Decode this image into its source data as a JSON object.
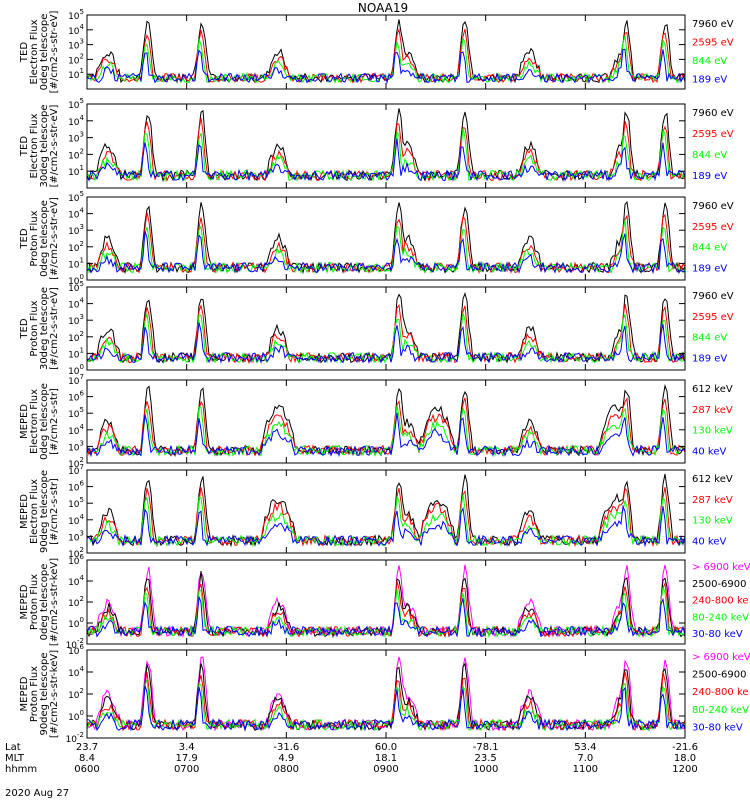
{
  "title": "NOAA19",
  "date": "2020 Aug 27",
  "colors": {
    "black": "#000000",
    "red": "#ff0000",
    "green": "#00ff00",
    "blue": "#0000ff",
    "magenta": "#ff00ff"
  },
  "axis_rows": [
    {
      "label": "Lat",
      "values": [
        "23.7",
        "3.4",
        "-31.6",
        "60.0",
        "-78.1",
        "53.4",
        "-21.6"
      ]
    },
    {
      "label": "MLT",
      "values": [
        "8.4",
        "17.9",
        "4.9",
        "18.1",
        "23.5",
        "7.0",
        "18.0"
      ]
    },
    {
      "label": "hhmm",
      "values": [
        "0600",
        "0700",
        "0800",
        "0900",
        "1000",
        "1100",
        "1200"
      ]
    }
  ],
  "chart_data": [
    {
      "type": "scatter",
      "ylabel": [
        "TED",
        "Electron Flux",
        "0deg telescope",
        "[#/cm2-s-str-eV]"
      ],
      "yticks": [
        {
          "v": 1,
          "t": "10"
        },
        {
          "v": 2,
          "t": "10"
        },
        {
          "v": 3,
          "t": "10"
        },
        {
          "v": 4,
          "t": "10"
        },
        {
          "v": 5,
          "t": "10"
        }
      ],
      "ytick_exp": [
        "1",
        "2",
        "3",
        "4",
        "5"
      ],
      "ylim_log10": [
        0,
        5
      ],
      "series": [
        {
          "name": "7960 eV",
          "color": "#000000"
        },
        {
          "name": "2595 eV",
          "color": "#ff0000"
        },
        {
          "name": "844 eV",
          "color": "#00ff00"
        },
        {
          "name": "189 eV",
          "color": "#0000ff"
        }
      ]
    },
    {
      "type": "scatter",
      "ylabel": [
        "TED",
        "Electron Flux",
        "30deg telescope",
        "[#/cm2-s-str-eV]"
      ],
      "yticks": [
        {
          "v": 1,
          "t": "10"
        },
        {
          "v": 2,
          "t": "10"
        },
        {
          "v": 3,
          "t": "10"
        },
        {
          "v": 4,
          "t": "10"
        },
        {
          "v": 5,
          "t": "10"
        }
      ],
      "ytick_exp": [
        "1",
        "2",
        "3",
        "4",
        "5"
      ],
      "ylim_log10": [
        0,
        5
      ],
      "series": [
        {
          "name": "7960 eV",
          "color": "#000000"
        },
        {
          "name": "2595 eV",
          "color": "#ff0000"
        },
        {
          "name": "844 eV",
          "color": "#00ff00"
        },
        {
          "name": "189 eV",
          "color": "#0000ff"
        }
      ]
    },
    {
      "type": "scatter",
      "ylabel": [
        "TED",
        "Proton Flux",
        "0deg telescope",
        "[#/cm2-s-str-eV]"
      ],
      "yticks": [
        {
          "v": 0,
          "t": "10"
        },
        {
          "v": 1,
          "t": "10"
        },
        {
          "v": 2,
          "t": "10"
        },
        {
          "v": 3,
          "t": "10"
        },
        {
          "v": 4,
          "t": "10"
        },
        {
          "v": 5,
          "t": "10"
        }
      ],
      "ytick_exp": [
        "0",
        "1",
        "2",
        "3",
        "4",
        "5"
      ],
      "ylim_log10": [
        0,
        5
      ],
      "series": [
        {
          "name": "7960 eV",
          "color": "#000000"
        },
        {
          "name": "2595 eV",
          "color": "#ff0000"
        },
        {
          "name": "844 eV",
          "color": "#00ff00"
        },
        {
          "name": "189 eV",
          "color": "#0000ff"
        }
      ]
    },
    {
      "type": "scatter",
      "ylabel": [
        "TED",
        "Proton Flux",
        "30deg telescope",
        "[#/cm2-s-str-eV]"
      ],
      "yticks": [
        {
          "v": 0,
          "t": "10"
        },
        {
          "v": 1,
          "t": "10"
        },
        {
          "v": 2,
          "t": "10"
        },
        {
          "v": 3,
          "t": "10"
        },
        {
          "v": 4,
          "t": "10"
        },
        {
          "v": 5,
          "t": "10"
        }
      ],
      "ytick_exp": [
        "0",
        "1",
        "2",
        "3",
        "4",
        "5"
      ],
      "ylim_log10": [
        0,
        5
      ],
      "series": [
        {
          "name": "7960 eV",
          "color": "#000000"
        },
        {
          "name": "2595 eV",
          "color": "#ff0000"
        },
        {
          "name": "844 eV",
          "color": "#00ff00"
        },
        {
          "name": "189 eV",
          "color": "#0000ff"
        }
      ]
    },
    {
      "type": "scatter",
      "ylabel": [
        "MEPED",
        "Electron Flux",
        "0deg telescope",
        "[#/cm2-s-str]"
      ],
      "yticks": [
        {
          "v": 2,
          "t": "10"
        },
        {
          "v": 3,
          "t": "10"
        },
        {
          "v": 4,
          "t": "10"
        },
        {
          "v": 5,
          "t": "10"
        },
        {
          "v": 6,
          "t": "10"
        },
        {
          "v": 7,
          "t": "10"
        }
      ],
      "ytick_exp": [
        "2",
        "3",
        "4",
        "5",
        "6",
        "7"
      ],
      "ylim_log10": [
        2,
        7
      ],
      "series": [
        {
          "name": "612 keV",
          "color": "#000000"
        },
        {
          "name": "287 keV",
          "color": "#ff0000"
        },
        {
          "name": "130 keV",
          "color": "#00ff00"
        },
        {
          "name": "40 keV",
          "color": "#0000ff"
        }
      ]
    },
    {
      "type": "scatter",
      "ylabel": [
        "MEPED",
        "Electron Flux",
        "90deg telescope",
        "[#/cm2-s-str]"
      ],
      "yticks": [
        {
          "v": 2,
          "t": "10"
        },
        {
          "v": 3,
          "t": "10"
        },
        {
          "v": 4,
          "t": "10"
        },
        {
          "v": 5,
          "t": "10"
        },
        {
          "v": 6,
          "t": "10"
        },
        {
          "v": 7,
          "t": "10"
        }
      ],
      "ytick_exp": [
        "2",
        "3",
        "4",
        "5",
        "6",
        "7"
      ],
      "ylim_log10": [
        2,
        7
      ],
      "series": [
        {
          "name": "612 keV",
          "color": "#000000"
        },
        {
          "name": "287 keV",
          "color": "#ff0000"
        },
        {
          "name": "130 keV",
          "color": "#00ff00"
        },
        {
          "name": "40 keV",
          "color": "#0000ff"
        }
      ]
    },
    {
      "type": "scatter",
      "ylabel": [
        "MEPED",
        "Proton Flux",
        "0deg telescope",
        "[#/cm2-s-str-keV]"
      ],
      "yticks": [
        {
          "v": -2,
          "t": "10"
        },
        {
          "v": 0,
          "t": "10"
        },
        {
          "v": 2,
          "t": "10"
        },
        {
          "v": 4,
          "t": "10"
        },
        {
          "v": 6,
          "t": "10"
        }
      ],
      "ytick_exp": [
        "-2",
        "0",
        "2",
        "4",
        "6"
      ],
      "ylim_log10": [
        -2,
        6
      ],
      "series": [
        {
          "name": "> 6900 keV",
          "color": "#ff00ff"
        },
        {
          "name": "2500-6900",
          "color": "#000000"
        },
        {
          "name": "240-800 ke",
          "color": "#ff0000"
        },
        {
          "name": "80-240 keV",
          "color": "#00ff00"
        },
        {
          "name": "30-80 keV",
          "color": "#0000ff"
        }
      ]
    },
    {
      "type": "scatter",
      "ylabel": [
        "MEPED",
        "Proton Flux",
        "90deg telescope",
        "[#/cm2-s-str-keV]"
      ],
      "yticks": [
        {
          "v": -2,
          "t": "10"
        },
        {
          "v": 0,
          "t": "10"
        },
        {
          "v": 2,
          "t": "10"
        },
        {
          "v": 4,
          "t": "10"
        },
        {
          "v": 6,
          "t": "10"
        }
      ],
      "ytick_exp": [
        "-2",
        "0",
        "2",
        "4",
        "6"
      ],
      "ylim_log10": [
        -2,
        6
      ],
      "series": [
        {
          "name": "> 6900 keV",
          "color": "#ff00ff"
        },
        {
          "name": "2500-6900",
          "color": "#000000"
        },
        {
          "name": "240-800 ke",
          "color": "#ff0000"
        },
        {
          "name": "80-240 keV",
          "color": "#00ff00"
        },
        {
          "name": "30-80 keV",
          "color": "#0000ff"
        }
      ]
    }
  ]
}
